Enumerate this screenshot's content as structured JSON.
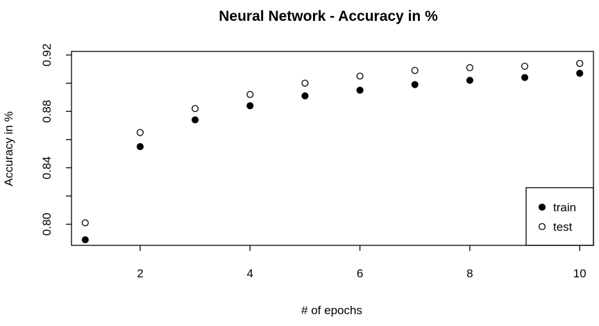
{
  "chart_data": {
    "type": "scatter",
    "title": "Neural Network - Accuracy in %",
    "xlabel": "# of epochs",
    "ylabel": "Accuracy in %",
    "xlim": [
      0.75,
      10.25
    ],
    "ylim": [
      0.785,
      0.9225
    ],
    "x_ticks": [
      2,
      4,
      6,
      8,
      10
    ],
    "x_tick_labels": [
      "2",
      "4",
      "6",
      "8",
      "10"
    ],
    "y_ticks": [
      0.8,
      0.82,
      0.84,
      0.86,
      0.88,
      0.9,
      0.92
    ],
    "y_tick_labels": [
      "0.80",
      "",
      "0.84",
      "",
      "0.88",
      "",
      "0.92"
    ],
    "x": [
      1,
      2,
      3,
      4,
      5,
      6,
      7,
      8,
      9,
      10
    ],
    "series": [
      {
        "name": "train",
        "marker": "filled-circle",
        "color": "#000000",
        "values": [
          0.789,
          0.855,
          0.874,
          0.884,
          0.891,
          0.895,
          0.899,
          0.902,
          0.904,
          0.907
        ]
      },
      {
        "name": "test",
        "marker": "open-circle",
        "color": "#000000",
        "values": [
          0.801,
          0.865,
          0.882,
          0.892,
          0.9,
          0.905,
          0.909,
          0.911,
          0.912,
          0.914
        ]
      }
    ],
    "grid": false,
    "legend_position": "bottom-right"
  }
}
